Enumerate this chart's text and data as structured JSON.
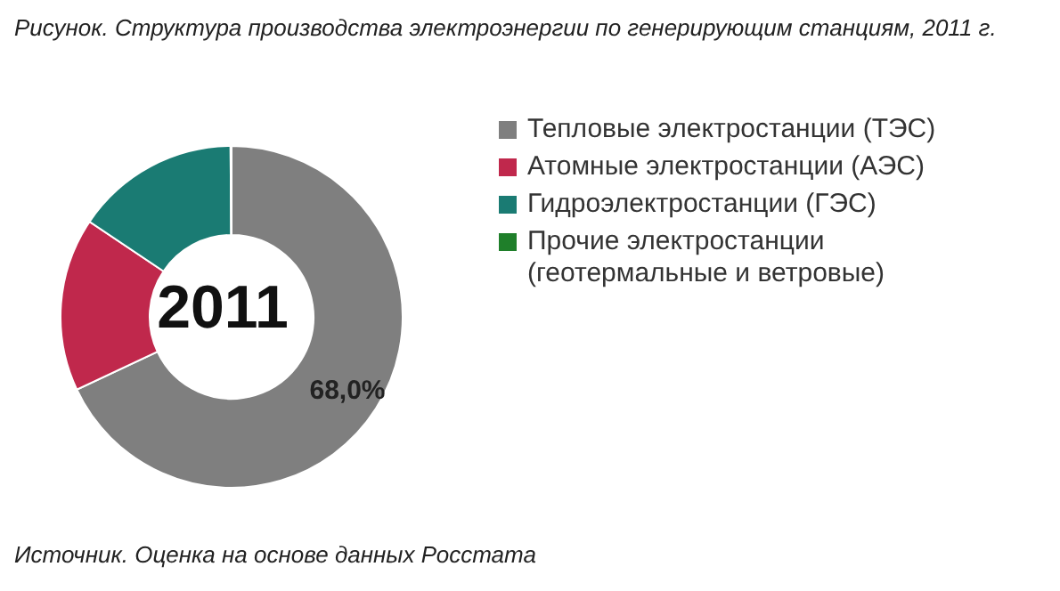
{
  "chart_data": {
    "type": "donut",
    "title": "Рисунок. Структура производства электроэнергии по генерирующим станциям, 2011 г.",
    "categories": [
      "Тепловые электростанции (ТЭС)",
      "Атомные электростанции (АЭС)",
      "Гидроэлектростанции (ГЭС)",
      "Прочие электростанции (геотермальные и ветровые)"
    ],
    "values": [
      68.0,
      16.4,
      15.5,
      0.1
    ],
    "colors": [
      "#7f7f7f",
      "#c0284c",
      "#1a7b73",
      "#1f7f2a"
    ],
    "value_labels": [
      "68,0%",
      null,
      null,
      null
    ],
    "legend": "right",
    "annotations": [
      "2011",
      "Источник. Оценка на основе данных Росстата"
    ]
  }
}
